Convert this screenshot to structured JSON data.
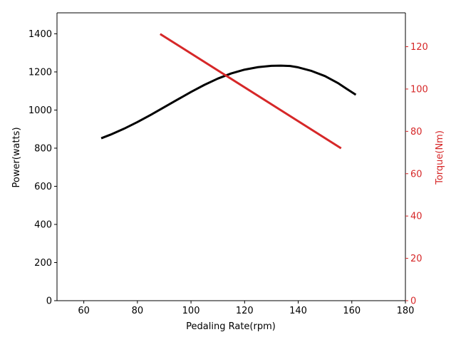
{
  "chart_data": {
    "type": "line",
    "title": "",
    "xlabel": "Pedaling Rate(rpm)",
    "ylabel": "Power(watts)",
    "y2label": "Torque(Nm)",
    "xlim": [
      50,
      180
    ],
    "ylim": [
      0,
      1510
    ],
    "y2lim": [
      0,
      136
    ],
    "xticks": [
      60,
      80,
      100,
      120,
      140,
      160,
      180
    ],
    "yticks": [
      0,
      200,
      400,
      600,
      800,
      1000,
      1200,
      1400
    ],
    "y2ticks": [
      0,
      20,
      40,
      60,
      80,
      100,
      120
    ],
    "grid": false,
    "series": [
      {
        "axis": "left",
        "color": "#000000",
        "x": [
          66.5,
          70,
          75,
          80,
          85,
          90,
          95,
          100,
          105,
          110,
          115,
          120,
          125,
          130,
          133.5,
          137,
          140,
          145,
          150,
          155,
          158,
          161.5
        ],
        "y": [
          852,
          871,
          902,
          937,
          975,
          1015,
          1055,
          1095,
          1132,
          1165,
          1192,
          1212,
          1225,
          1232,
          1233,
          1231,
          1224,
          1205,
          1178,
          1140,
          1112,
          1080
        ]
      },
      {
        "axis": "right",
        "color": "#d62728",
        "x": [
          88.5,
          156
        ],
        "y": [
          126,
          72
        ]
      }
    ]
  }
}
